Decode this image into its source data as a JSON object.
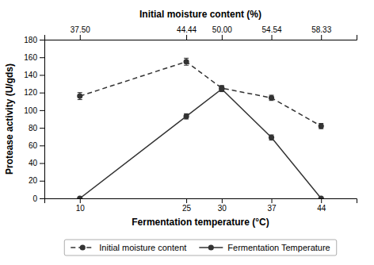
{
  "chart_data": {
    "type": "line",
    "xlabel": "Fermentation temperature (°C)",
    "x2label": "Initial moisture content (%)",
    "ylabel": "Protease activity (U/gds)",
    "x": [
      10,
      25,
      30,
      37,
      44
    ],
    "xlim": [
      5,
      49
    ],
    "xticks": [
      10,
      25,
      30,
      37,
      44
    ],
    "x2lim": [
      5,
      49
    ],
    "x2ticks": [
      {
        "value": 10,
        "label": "37.50"
      },
      {
        "value": 25,
        "label": "44.44"
      },
      {
        "value": 30,
        "label": "50.00"
      },
      {
        "value": 37,
        "label": "54.54"
      },
      {
        "value": 44,
        "label": "58.33"
      }
    ],
    "ylim": [
      0,
      180
    ],
    "yticks": [
      0,
      20,
      40,
      60,
      80,
      100,
      120,
      140,
      160,
      180
    ],
    "grid": false,
    "legend": "bottom",
    "series": [
      {
        "name": "Initial moisture content",
        "color": "#333333",
        "marker": "circle",
        "line_style": "dashed",
        "values": [
          116,
          155,
          125,
          114,
          82
        ],
        "errors": [
          4,
          4,
          3,
          3,
          3
        ]
      },
      {
        "name": "Fermentation Temperature",
        "color": "#333333",
        "marker": "circle",
        "line_style": "solid",
        "values": [
          0,
          93,
          124,
          69,
          0
        ],
        "errors": [
          0,
          3,
          3,
          3,
          0
        ]
      }
    ]
  }
}
